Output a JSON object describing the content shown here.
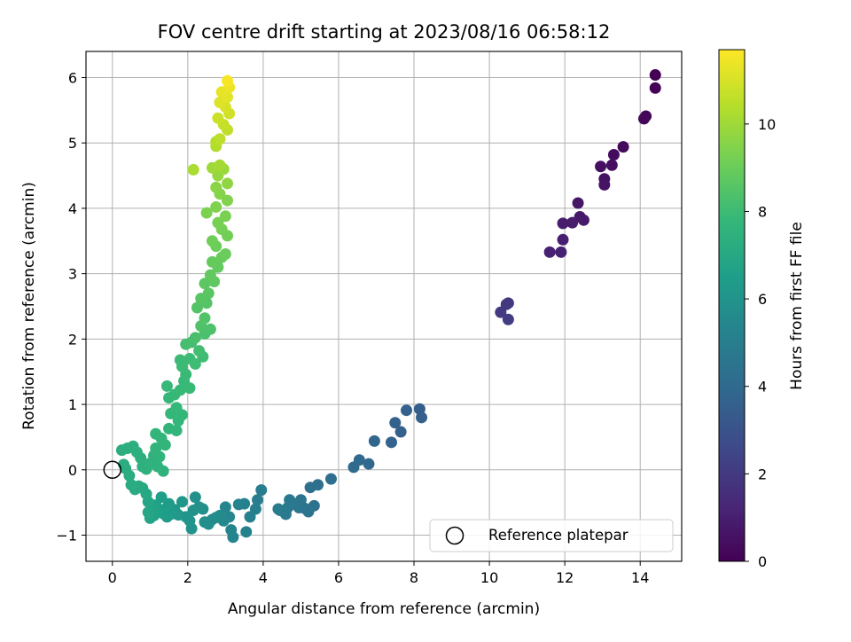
{
  "chart_data": {
    "type": "scatter",
    "title": "FOV centre drift starting at 2023/08/16 06:58:12",
    "xlabel": "Angular distance from reference (arcmin)",
    "ylabel": "Rotation from reference (arcmin)",
    "xlim": [
      -0.7,
      15.1
    ],
    "ylim": [
      -1.4,
      6.4
    ],
    "xticks": [
      0,
      2,
      4,
      6,
      8,
      10,
      12,
      14
    ],
    "yticks": [
      -1,
      0,
      1,
      2,
      3,
      4,
      5,
      6
    ],
    "grid": true,
    "colormap": "viridis",
    "colorbar": {
      "label": "Hours from first FF file",
      "range": [
        0,
        11.7
      ],
      "ticks": [
        0,
        2,
        4,
        6,
        8,
        10
      ]
    },
    "legend": {
      "position": "lower-right",
      "entries": [
        {
          "label": "Reference platepar",
          "marker": "hollow-circle"
        }
      ]
    },
    "reference_point": {
      "x": 0,
      "y": 0
    },
    "series": [
      {
        "points": [
          [
            14.4,
            6.04,
            0.0
          ],
          [
            14.4,
            5.84,
            0.06
          ],
          [
            14.15,
            5.41,
            0.15
          ],
          [
            14.1,
            5.37,
            0.2
          ],
          [
            13.55,
            4.94,
            0.3
          ],
          [
            13.3,
            4.82,
            0.36
          ],
          [
            13.25,
            4.66,
            0.42
          ],
          [
            12.95,
            4.64,
            0.5
          ],
          [
            13.05,
            4.45,
            0.55
          ],
          [
            13.05,
            4.36,
            0.6
          ],
          [
            12.35,
            4.08,
            0.7
          ],
          [
            12.4,
            3.87,
            0.78
          ],
          [
            12.5,
            3.82,
            0.82
          ],
          [
            12.2,
            3.78,
            0.9
          ],
          [
            11.95,
            3.77,
            0.95
          ],
          [
            11.95,
            3.52,
            1.0
          ],
          [
            11.9,
            3.33,
            1.05
          ],
          [
            11.6,
            3.33,
            1.1
          ],
          [
            10.5,
            2.55,
            1.9
          ],
          [
            10.45,
            2.53,
            1.95
          ],
          [
            10.3,
            2.41,
            2.0
          ],
          [
            10.5,
            2.3,
            2.1
          ],
          [
            8.15,
            0.93,
            3.5
          ],
          [
            8.2,
            0.8,
            3.55
          ],
          [
            7.8,
            0.91,
            3.6
          ],
          [
            7.65,
            0.58,
            3.65
          ],
          [
            7.5,
            0.72,
            3.7
          ],
          [
            7.4,
            0.42,
            3.75
          ],
          [
            6.95,
            0.44,
            3.85
          ],
          [
            6.8,
            0.09,
            3.95
          ],
          [
            6.55,
            0.15,
            4.0
          ],
          [
            6.4,
            0.04,
            4.05
          ],
          [
            5.8,
            -0.14,
            4.2
          ],
          [
            5.45,
            -0.23,
            4.3
          ],
          [
            5.25,
            -0.27,
            4.35
          ],
          [
            5.35,
            -0.55,
            4.4
          ],
          [
            5.1,
            -0.59,
            4.45
          ],
          [
            5.2,
            -0.64,
            4.5
          ],
          [
            5.0,
            -0.46,
            4.55
          ],
          [
            4.95,
            -0.58,
            4.6
          ],
          [
            4.85,
            -0.53,
            4.65
          ],
          [
            4.7,
            -0.46,
            4.7
          ],
          [
            4.65,
            -0.58,
            4.75
          ],
          [
            4.6,
            -0.68,
            4.8
          ],
          [
            4.45,
            -0.62,
            4.85
          ],
          [
            4.4,
            -0.6,
            4.9
          ],
          [
            3.95,
            -0.31,
            4.95
          ],
          [
            3.85,
            -0.46,
            5.0
          ],
          [
            3.8,
            -0.6,
            5.05
          ],
          [
            3.65,
            -0.72,
            5.1
          ],
          [
            3.55,
            -0.95,
            5.15
          ],
          [
            3.5,
            -0.52,
            5.2
          ],
          [
            3.35,
            -0.53,
            5.25
          ],
          [
            3.2,
            -1.03,
            5.3
          ],
          [
            3.15,
            -0.92,
            5.35
          ],
          [
            3.1,
            -0.72,
            5.4
          ],
          [
            3.0,
            -0.57,
            5.45
          ],
          [
            2.95,
            -0.78,
            5.5
          ],
          [
            2.85,
            -0.7,
            5.55
          ],
          [
            2.75,
            -0.73,
            5.6
          ],
          [
            2.65,
            -0.76,
            5.65
          ],
          [
            2.55,
            -0.83,
            5.7
          ],
          [
            2.45,
            -0.8,
            5.75
          ],
          [
            2.4,
            -0.6,
            5.8
          ],
          [
            2.3,
            -0.57,
            5.85
          ],
          [
            2.2,
            -0.42,
            5.9
          ],
          [
            2.15,
            -0.62,
            5.95
          ],
          [
            2.1,
            -0.9,
            6.0
          ],
          [
            2.05,
            -0.78,
            6.05
          ],
          [
            1.95,
            -0.72,
            6.1
          ],
          [
            1.85,
            -0.49,
            6.15
          ],
          [
            1.75,
            -0.69,
            6.2
          ],
          [
            1.65,
            -0.61,
            6.25
          ],
          [
            1.55,
            -0.68,
            6.3
          ],
          [
            1.5,
            -0.52,
            6.35
          ],
          [
            1.45,
            -0.72,
            6.4
          ],
          [
            1.4,
            -0.6,
            6.45
          ],
          [
            1.35,
            -0.67,
            6.5
          ],
          [
            1.3,
            -0.42,
            6.55
          ],
          [
            1.2,
            -0.64,
            6.6
          ],
          [
            1.15,
            -0.54,
            6.65
          ],
          [
            1.1,
            -0.7,
            6.7
          ],
          [
            1.05,
            -0.59,
            6.75
          ],
          [
            1.0,
            -0.74,
            6.8
          ],
          [
            0.95,
            -0.49,
            6.85
          ],
          [
            0.95,
            -0.65,
            6.9
          ],
          [
            0.9,
            -0.37,
            6.95
          ],
          [
            0.8,
            -0.28,
            7.0
          ],
          [
            0.7,
            -0.25,
            7.05
          ],
          [
            0.6,
            -0.3,
            7.1
          ],
          [
            0.5,
            -0.23,
            7.15
          ],
          [
            0.45,
            -0.09,
            7.2
          ],
          [
            0.35,
            0.02,
            7.25
          ],
          [
            0.3,
            0.08,
            7.28
          ],
          [
            0.25,
            0.3,
            7.3
          ],
          [
            0.4,
            0.33,
            7.32
          ],
          [
            0.55,
            0.36,
            7.35
          ],
          [
            0.65,
            0.27,
            7.38
          ],
          [
            0.75,
            0.18,
            7.4
          ],
          [
            0.8,
            0.05,
            7.42
          ],
          [
            0.9,
            0.01,
            7.45
          ],
          [
            1.0,
            0.1,
            7.48
          ],
          [
            1.1,
            0.22,
            7.5
          ],
          [
            1.2,
            0.05,
            7.52
          ],
          [
            1.35,
            -0.02,
            7.55
          ],
          [
            1.25,
            0.2,
            7.58
          ],
          [
            1.15,
            0.33,
            7.6
          ],
          [
            1.3,
            0.48,
            7.62
          ],
          [
            1.15,
            0.55,
            7.64
          ],
          [
            1.4,
            0.38,
            7.66
          ],
          [
            1.5,
            0.63,
            7.68
          ],
          [
            1.7,
            0.6,
            7.7
          ],
          [
            1.75,
            0.75,
            7.72
          ],
          [
            1.85,
            0.84,
            7.74
          ],
          [
            1.55,
            0.86,
            7.76
          ],
          [
            1.7,
            0.95,
            7.78
          ],
          [
            1.5,
            1.1,
            7.8
          ],
          [
            1.65,
            1.15,
            7.82
          ],
          [
            1.45,
            1.28,
            7.84
          ],
          [
            1.8,
            1.22,
            7.86
          ],
          [
            1.9,
            1.36,
            7.88
          ],
          [
            2.05,
            1.25,
            7.9
          ],
          [
            1.95,
            1.46,
            7.92
          ],
          [
            1.85,
            1.58,
            7.94
          ],
          [
            1.8,
            1.68,
            7.96
          ],
          [
            2.05,
            1.7,
            7.98
          ],
          [
            2.2,
            1.62,
            8.0
          ],
          [
            2.4,
            1.73,
            8.05
          ],
          [
            2.3,
            1.82,
            8.1
          ],
          [
            2.1,
            1.95,
            8.15
          ],
          [
            1.95,
            1.92,
            8.2
          ],
          [
            2.2,
            2.02,
            8.25
          ],
          [
            2.45,
            2.08,
            8.3
          ],
          [
            2.6,
            2.15,
            8.35
          ],
          [
            2.35,
            2.2,
            8.4
          ],
          [
            2.45,
            2.32,
            8.45
          ],
          [
            2.25,
            2.48,
            8.5
          ],
          [
            2.5,
            2.55,
            8.55
          ],
          [
            2.35,
            2.62,
            8.6
          ],
          [
            2.55,
            2.7,
            8.65
          ],
          [
            2.45,
            2.85,
            8.7
          ],
          [
            2.7,
            2.88,
            8.75
          ],
          [
            2.6,
            2.98,
            8.8
          ],
          [
            2.8,
            3.1,
            8.85
          ],
          [
            2.65,
            3.18,
            8.9
          ],
          [
            2.9,
            3.25,
            8.95
          ],
          [
            3.0,
            3.3,
            9.0
          ],
          [
            2.75,
            3.42,
            9.05
          ],
          [
            2.65,
            3.5,
            9.1
          ],
          [
            3.05,
            3.58,
            9.15
          ],
          [
            2.9,
            3.68,
            9.2
          ],
          [
            2.8,
            3.78,
            9.25
          ],
          [
            3.0,
            3.88,
            9.3
          ],
          [
            2.5,
            3.93,
            9.35
          ],
          [
            2.75,
            4.02,
            9.4
          ],
          [
            3.05,
            4.12,
            9.45
          ],
          [
            2.85,
            4.22,
            9.5
          ],
          [
            2.75,
            4.32,
            9.6
          ],
          [
            3.05,
            4.38,
            9.7
          ],
          [
            2.8,
            4.5,
            9.8
          ],
          [
            2.95,
            4.6,
            9.9
          ],
          [
            2.65,
            4.62,
            10.0
          ],
          [
            2.85,
            4.66,
            10.1
          ],
          [
            2.15,
            4.59,
            10.2
          ],
          [
            2.75,
            4.95,
            10.3
          ],
          [
            2.75,
            5.02,
            10.4
          ],
          [
            2.85,
            5.06,
            10.5
          ],
          [
            3.05,
            5.2,
            10.6
          ],
          [
            2.95,
            5.28,
            10.7
          ],
          [
            2.8,
            5.38,
            10.8
          ],
          [
            3.1,
            5.45,
            10.9
          ],
          [
            3.0,
            5.55,
            11.0
          ],
          [
            2.85,
            5.62,
            11.1
          ],
          [
            3.05,
            5.7,
            11.2
          ],
          [
            2.9,
            5.78,
            11.3
          ],
          [
            3.1,
            5.85,
            11.4
          ],
          [
            3.05,
            5.95,
            11.6
          ]
        ]
      }
    ]
  }
}
